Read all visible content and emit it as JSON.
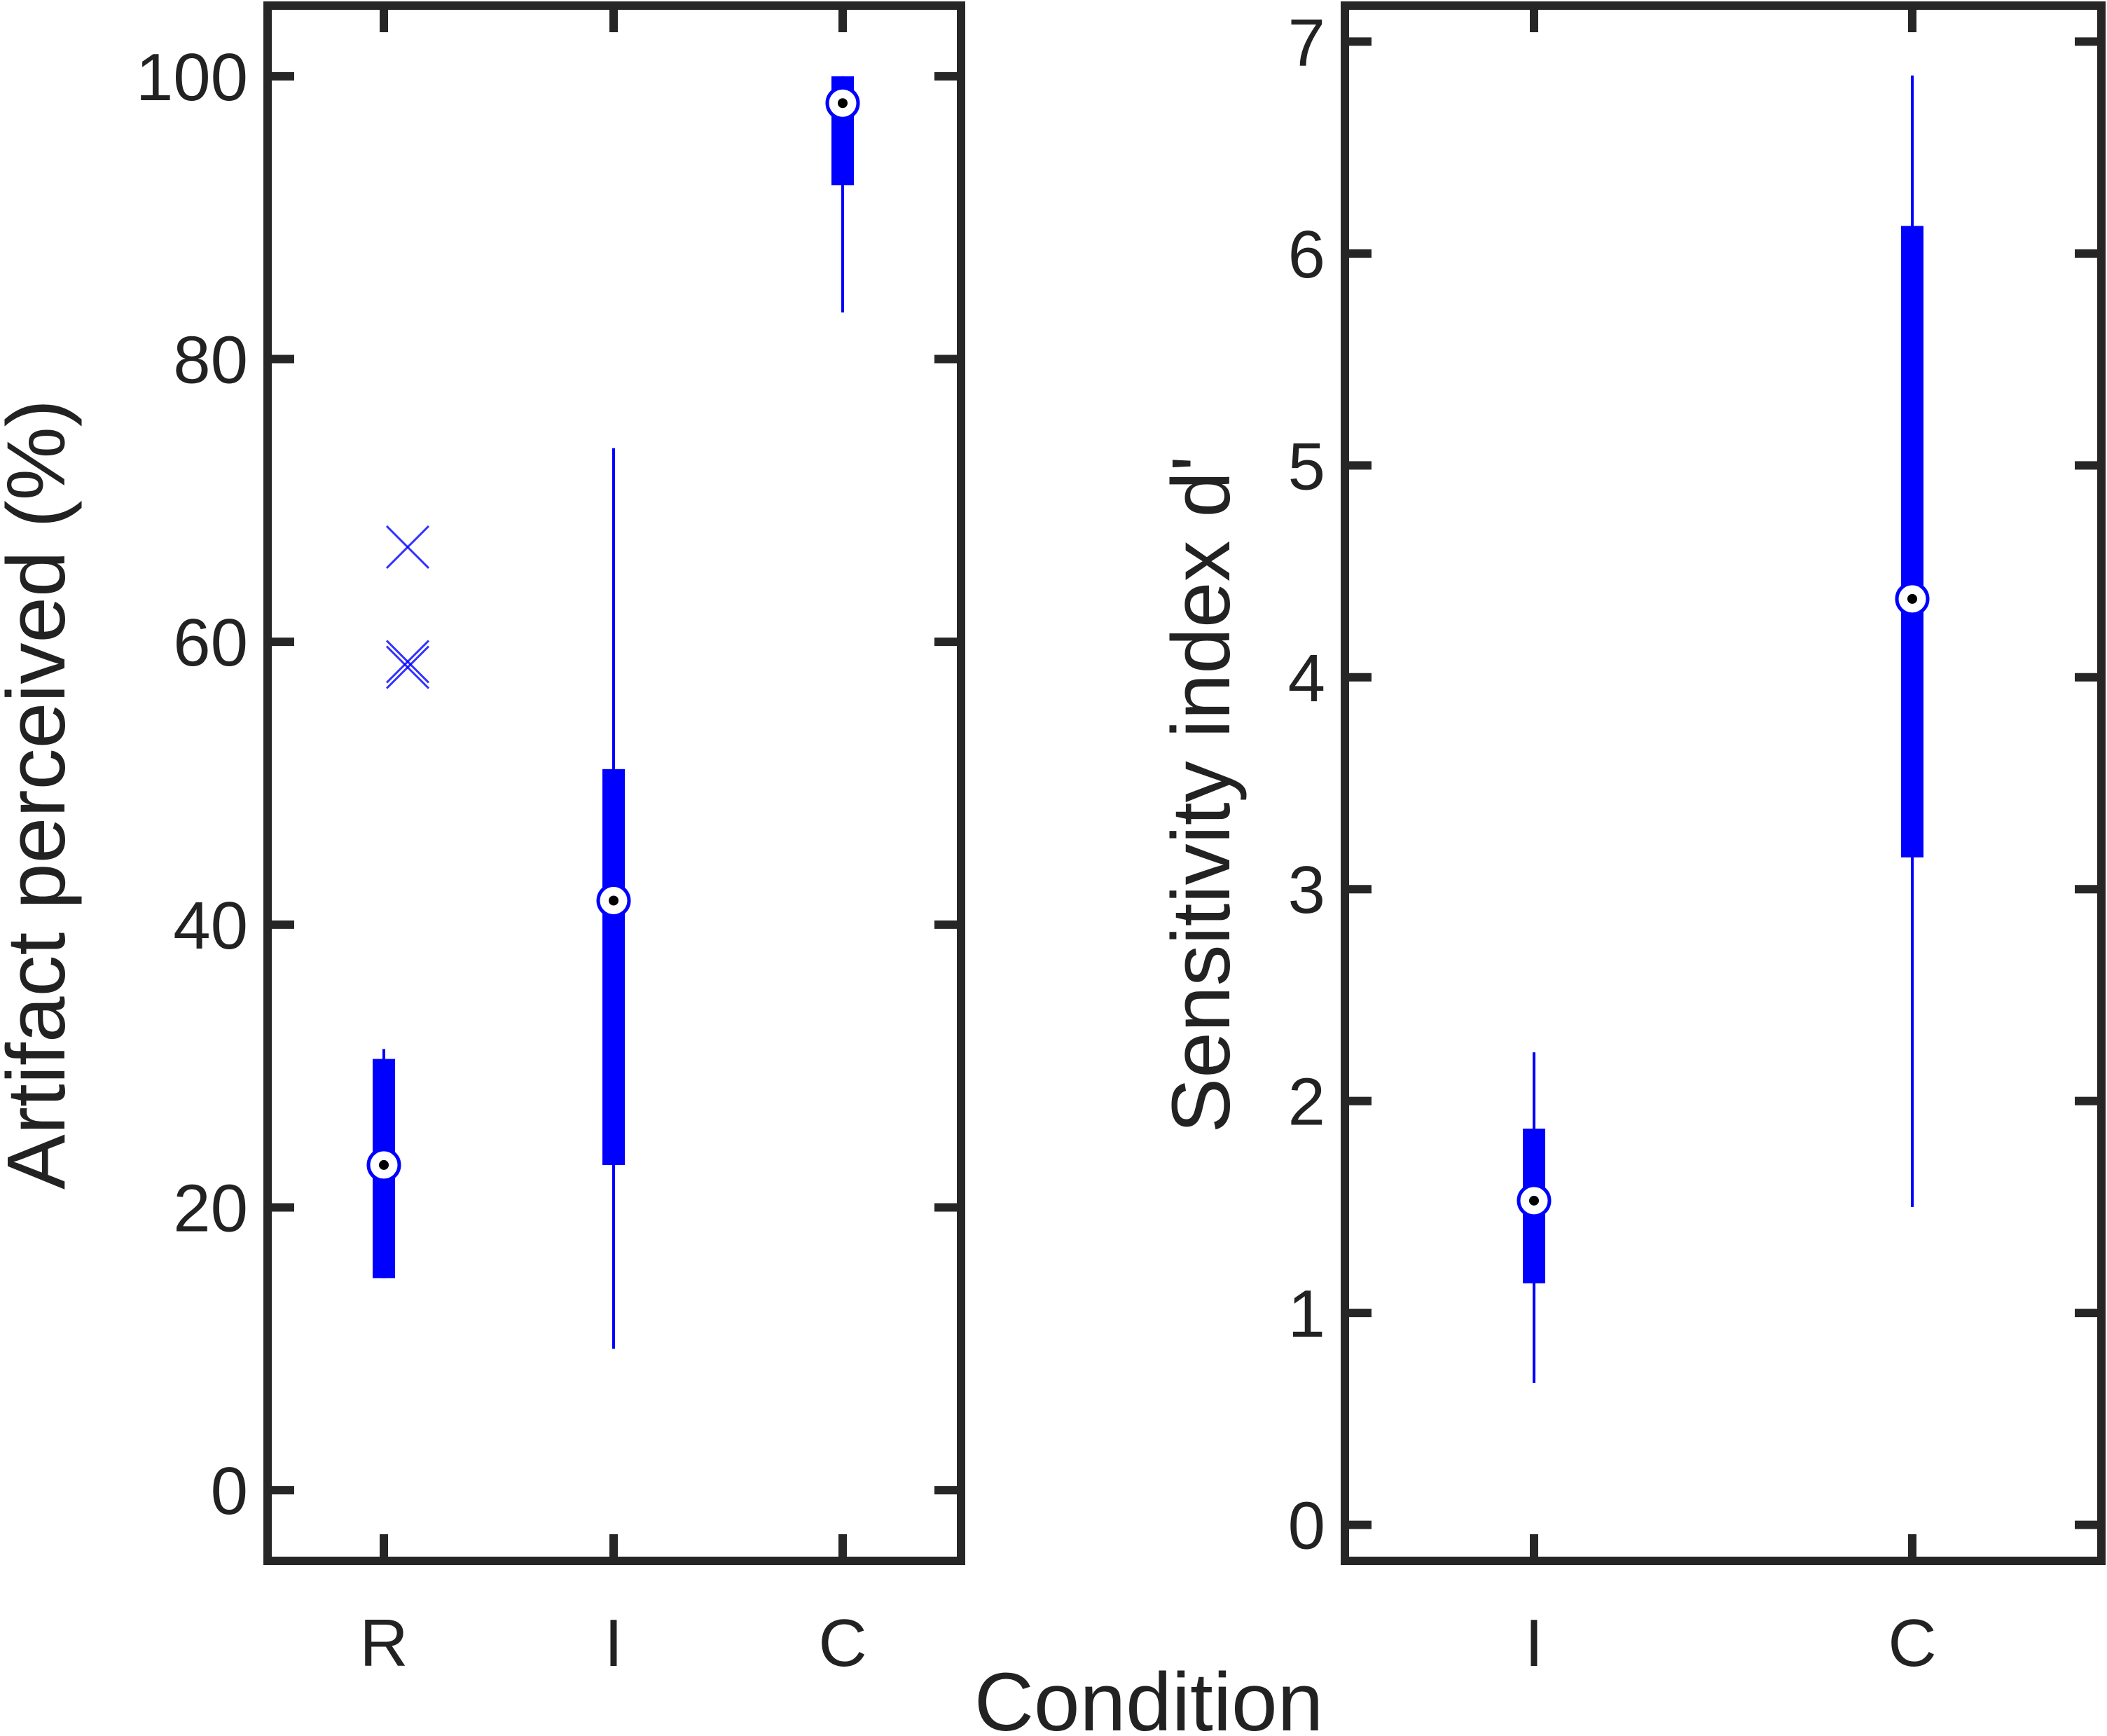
{
  "xlabel": "Condition",
  "colors": {
    "box": "#0000ff",
    "axis": "#262626",
    "text": "#222222",
    "median_dot": "#000000"
  },
  "chart_data": [
    {
      "type": "box",
      "ylabel": "Artifact perceived (%)",
      "categories": [
        "R",
        "I",
        "C"
      ],
      "ylim": [
        -5,
        105
      ],
      "yticks": [
        "0",
        "20",
        "40",
        "60",
        "80",
        "100"
      ],
      "ytick_values": [
        0,
        20,
        40,
        60,
        80,
        100
      ],
      "grid": false,
      "boxes": [
        {
          "category": "R",
          "whisker_low": 15,
          "q1": 15,
          "median": 23,
          "q3": 30.5,
          "whisker_high": 31.2,
          "outliers": [
            58.2,
            58.6,
            66.7
          ]
        },
        {
          "category": "I",
          "whisker_low": 10,
          "q1": 23,
          "median": 41.7,
          "q3": 51,
          "whisker_high": 73.7,
          "outliers": []
        },
        {
          "category": "C",
          "whisker_low": 83.3,
          "q1": 92.3,
          "median": 98.1,
          "q3": 100,
          "whisker_high": 100,
          "outliers": []
        }
      ]
    },
    {
      "type": "box",
      "ylabel": "Sensitivity index d'",
      "categories": [
        "I",
        "C"
      ],
      "ylim": [
        -0.17,
        7.17
      ],
      "yticks": [
        "0",
        "1",
        "2",
        "3",
        "4",
        "5",
        "6",
        "7"
      ],
      "ytick_values": [
        0,
        1,
        2,
        3,
        4,
        5,
        6,
        7
      ],
      "grid": false,
      "boxes": [
        {
          "category": "I",
          "whisker_low": 0.67,
          "q1": 1.14,
          "median": 1.53,
          "q3": 1.87,
          "whisker_high": 2.23,
          "outliers": []
        },
        {
          "category": "C",
          "whisker_low": 1.5,
          "q1": 3.15,
          "median": 4.37,
          "q3": 6.13,
          "whisker_high": 6.84,
          "outliers": []
        }
      ]
    }
  ]
}
